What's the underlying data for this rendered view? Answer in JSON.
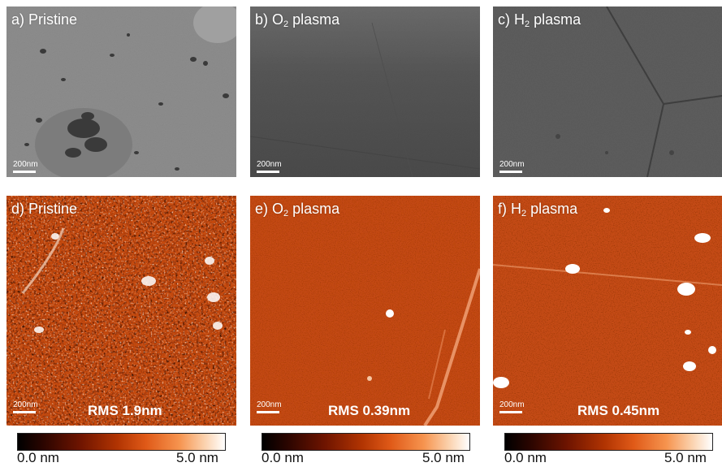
{
  "panels": [
    {
      "label_pre": "a) Pristine",
      "sub": "",
      "label_post": "",
      "scale": "200nm",
      "rms": ""
    },
    {
      "label_pre": "b)  O",
      "sub": "2",
      "label_post": " plasma",
      "scale": "200nm",
      "rms": ""
    },
    {
      "label_pre": "c) H",
      "sub": "2",
      "label_post": " plasma",
      "scale": "200nm",
      "rms": ""
    },
    {
      "label_pre": "d) Pristine",
      "sub": "",
      "label_post": "",
      "scale": "200nm",
      "rms": "RMS 1.9nm"
    },
    {
      "label_pre": "e)  O",
      "sub": "2",
      "label_post": " plasma",
      "scale": "200nm",
      "rms": "RMS 0.39nm"
    },
    {
      "label_pre": "f)  H",
      "sub": "2",
      "label_post": " plasma",
      "scale": "200nm",
      "rms": "RMS 0.45nm"
    }
  ],
  "colorbar": {
    "min_label": "0.0 nm",
    "max_label": "5.0 nm"
  },
  "colors": {
    "sem_gray": "#8a8a8a",
    "sem_dark": "#555555",
    "afm_base": "#c4480f",
    "afm_bright": "#ffffff"
  }
}
